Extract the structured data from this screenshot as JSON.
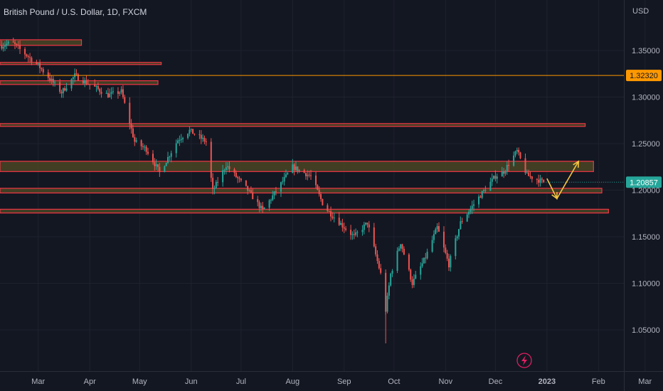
{
  "header": {
    "title": "British Pound / U.S. Dollar, 1D, FXCM",
    "currency": "USD"
  },
  "colors": {
    "background": "#131722",
    "up": "#26a69a",
    "down": "#ef5350",
    "zone_fill": "#4a4524",
    "zone_border": "#f23645",
    "orange_line": "#ff9800",
    "last_price_tag": "#26a69a",
    "arrow": "#f5c542",
    "grid": "#1e222d",
    "axis_text": "#b2b5be"
  },
  "icons": {
    "bottom_center": "lightning-bolt-icon"
  },
  "chart_data": {
    "type": "candlestick",
    "title": "British Pound / U.S. Dollar, 1D, FXCM",
    "symbol": "GBPUSD",
    "timeframe": "1D",
    "source": "FXCM",
    "y_axis_unit": "USD",
    "y_ticks": [
      "1.35000",
      "1.30000",
      "1.25000",
      "1.20000",
      "1.15000",
      "1.10000",
      "1.05000"
    ],
    "x_ticks": [
      "Mar",
      "Apr",
      "May",
      "Jun",
      "Jul",
      "Aug",
      "Sep",
      "Oct",
      "Nov",
      "Dec",
      "2023",
      "Feb",
      "Mar"
    ],
    "ylim": [
      1.015,
      1.405
    ],
    "x_tick_positions": [
      "2022-03-01",
      "2022-04-01",
      "2022-05-01",
      "2022-06-01",
      "2022-07-01",
      "2022-08-01",
      "2022-09-01",
      "2022-10-01",
      "2022-11-01",
      "2022-12-01",
      "2023-01-01",
      "2023-02-01",
      "2023-03-01"
    ],
    "horizontal_line": {
      "price": 1.3232,
      "label": "1.32320"
    },
    "last_price": {
      "price": 1.20857,
      "label": "1.20857"
    },
    "zones": [
      {
        "start": "2022-02-06",
        "end": "2022-03-27",
        "low": 1.3555,
        "high": 1.3615
      },
      {
        "start": "2022-02-06",
        "end": "2022-05-14",
        "low": 1.335,
        "high": 1.3372
      },
      {
        "start": "2022-02-06",
        "end": "2022-05-12",
        "low": 1.3135,
        "high": 1.3175
      },
      {
        "start": "2022-02-06",
        "end": "2023-01-24",
        "low": 1.2685,
        "high": 1.2715
      },
      {
        "start": "2022-02-06",
        "end": "2023-01-29",
        "low": 1.22,
        "high": 1.231
      },
      {
        "start": "2022-02-06",
        "end": "2023-02-03",
        "low": 1.197,
        "high": 1.202
      },
      {
        "start": "2022-02-06",
        "end": "2023-02-07",
        "low": 1.1755,
        "high": 1.1795
      }
    ],
    "projection_path": [
      {
        "date": "2023-01-01",
        "price": 1.2125
      },
      {
        "date": "2023-01-07",
        "price": 1.191
      },
      {
        "date": "2023-01-20",
        "price": 1.231
      }
    ],
    "anchors": [
      {
        "date": "2022-02-07",
        "price": 1.355
      },
      {
        "date": "2022-02-13",
        "price": 1.359
      },
      {
        "date": "2022-03-01",
        "price": 1.334
      },
      {
        "date": "2022-03-15",
        "price": 1.305
      },
      {
        "date": "2022-03-23",
        "price": 1.323
      },
      {
        "date": "2022-04-12",
        "price": 1.302
      },
      {
        "date": "2022-04-20",
        "price": 1.306
      },
      {
        "date": "2022-04-28",
        "price": 1.252
      },
      {
        "date": "2022-05-05",
        "price": 1.244
      },
      {
        "date": "2022-05-13",
        "price": 1.219
      },
      {
        "date": "2022-05-24",
        "price": 1.254
      },
      {
        "date": "2022-05-31",
        "price": 1.264
      },
      {
        "date": "2022-06-10",
        "price": 1.252
      },
      {
        "date": "2022-06-14",
        "price": 1.199
      },
      {
        "date": "2022-06-22",
        "price": 1.227
      },
      {
        "date": "2022-07-05",
        "price": 1.2
      },
      {
        "date": "2022-07-14",
        "price": 1.178
      },
      {
        "date": "2022-08-01",
        "price": 1.225
      },
      {
        "date": "2022-08-12",
        "price": 1.215
      },
      {
        "date": "2022-08-20",
        "price": 1.182
      },
      {
        "date": "2022-08-31",
        "price": 1.162
      },
      {
        "date": "2022-09-07",
        "price": 1.15
      },
      {
        "date": "2022-09-15",
        "price": 1.165
      },
      {
        "date": "2022-09-23",
        "price": 1.11
      },
      {
        "date": "2022-09-26",
        "price": 1.071
      },
      {
        "date": "2022-09-29",
        "price": 1.11
      },
      {
        "date": "2022-10-05",
        "price": 1.144
      },
      {
        "date": "2022-10-12",
        "price": 1.1
      },
      {
        "date": "2022-10-20",
        "price": 1.128
      },
      {
        "date": "2022-10-27",
        "price": 1.16
      },
      {
        "date": "2022-11-03",
        "price": 1.12
      },
      {
        "date": "2022-11-10",
        "price": 1.165
      },
      {
        "date": "2022-11-20",
        "price": 1.19
      },
      {
        "date": "2022-12-01",
        "price": 1.215
      },
      {
        "date": "2022-12-06",
        "price": 1.22
      },
      {
        "date": "2022-12-14",
        "price": 1.242
      },
      {
        "date": "2022-12-20",
        "price": 1.216
      },
      {
        "date": "2022-12-30",
        "price": 1.2086
      }
    ]
  }
}
